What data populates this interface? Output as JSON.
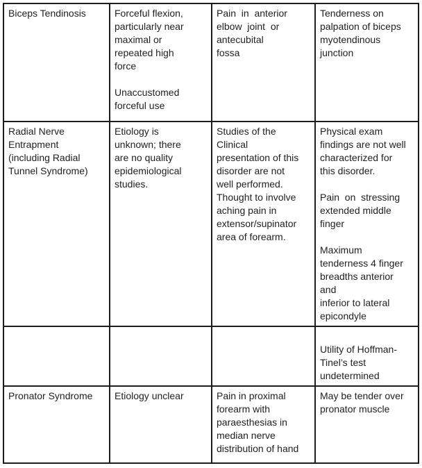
{
  "table": {
    "description": "Clinical table of elbow disorders: condition, etiology, symptoms, physical exam findings",
    "rows": [
      {
        "cells": [
          "Biceps Tendinosis",
          "Forceful flexion,\nparticularly near\nmaximal or\nrepeated high\nforce\n\nUnaccustomed\nforceful use",
          "Pain  in  anterior\nelbow  joint  or\nantecubital\nfossa",
          "Tenderness on\npalpation of biceps\nmyotendinous\njunction"
        ]
      },
      {
        "cells": [
          "Radial Nerve\nEntrapment\n(including Radial\nTunnel Syndrome)",
          "Etiology is\nunknown; there\nare no quality\nepidemiological\nstudies.",
          "Studies of the\nClinical\npresentation of this\ndisorder are not\nwell performed.\nThought to involve\naching pain in\nextensor/supinator\narea of forearm.",
          "Physical exam\nfindings are not well\ncharacterized for\nthis disorder.\n\nPain  on  stressing\nextended middle\nfinger\n\nMaximum\ntenderness 4 finger\nbreadths anterior\nand\ninferior to lateral\nepicondyle"
        ]
      },
      {
        "cells": [
          "",
          "",
          "",
          "\nUtility of Hoffman-\nTinel’s test\nundetermined"
        ]
      },
      {
        "cells": [
          "Pronator Syndrome",
          "Etiology unclear",
          "Pain in proximal\nforearm with\nparaesthesias in\nmedian nerve\ndistribution of hand",
          "May be tender over\npronator muscle"
        ]
      }
    ]
  }
}
